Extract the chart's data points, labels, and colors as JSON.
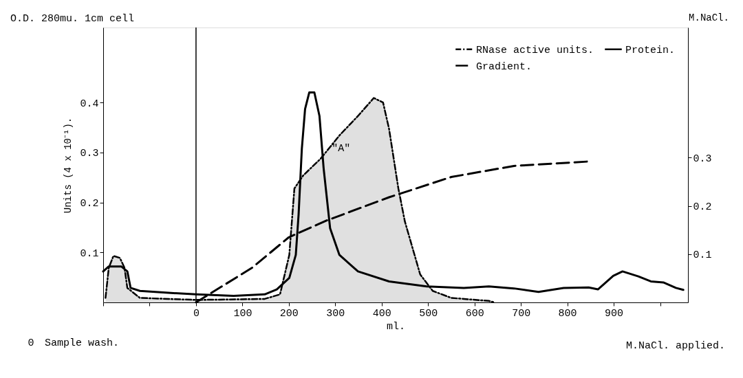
{
  "chart_data": {
    "type": "line",
    "xlabel": "ml.",
    "ylabel": "Units (4 x 10⁻¹).",
    "y2label": "M.NaCl.",
    "annotations": [
      "O.D. 280mu. 1cm cell",
      "Sample wash.",
      "M.NaCl. applied.",
      "\"A\"",
      "0"
    ],
    "xlim": [
      -200,
      1060
    ],
    "ylim": [
      0,
      0.55
    ],
    "y2lim": [
      0,
      0.57
    ],
    "xticks": [
      {
        "value": -200,
        "label": null
      },
      {
        "value": -100,
        "label": null
      },
      0,
      100,
      200,
      300,
      400,
      500,
      600,
      700,
      800,
      900,
      {
        "value": 1000,
        "label": null
      }
    ],
    "yticks": [
      0.1,
      0.2,
      0.3,
      0.4
    ],
    "y2ticks": [
      0.1,
      0.2,
      0.3
    ],
    "grid": false,
    "legend": "top right",
    "marker": "none",
    "ref_lines": [
      {
        "axis": "x",
        "value": 0,
        "label": null,
        "color": "#000000",
        "line_style": "solid"
      }
    ],
    "series": [
      {
        "name": "RNase active units.",
        "type": "area",
        "color": "#000000",
        "line_style": "dotted",
        "x": [
          -195,
          -188,
          -178,
          -164,
          -154,
          -148,
          -121,
          0,
          148,
          181,
          201,
          212,
          231,
          268,
          309,
          349,
          383,
          403,
          416,
          436,
          450,
          483,
          510,
          550,
          631,
          644
        ],
        "values": [
          0.009,
          0.069,
          0.093,
          0.089,
          0.069,
          0.029,
          0.009,
          0.005,
          0.007,
          0.016,
          0.095,
          0.228,
          0.254,
          0.287,
          0.334,
          0.373,
          0.409,
          0.4,
          0.347,
          0.228,
          0.162,
          0.056,
          0.023,
          0.009,
          0.003,
          0
        ]
      },
      {
        "name": "Protein.",
        "color": "#000000",
        "line_style": "solid",
        "x": [
          -200,
          -188,
          -161,
          -148,
          -141,
          -121,
          -54,
          0,
          81,
          148,
          174,
          201,
          215,
          221,
          228,
          235,
          244,
          255,
          266,
          275,
          289,
          309,
          349,
          416,
          497,
          577,
          631,
          685,
          738,
          792,
          846,
          866,
          899,
          919,
          953,
          980,
          1007,
          1034,
          1050
        ],
        "values": [
          0.062,
          0.072,
          0.072,
          0.062,
          0.029,
          0.023,
          0.019,
          0.016,
          0.013,
          0.016,
          0.026,
          0.049,
          0.095,
          0.175,
          0.307,
          0.387,
          0.42,
          0.42,
          0.373,
          0.268,
          0.148,
          0.095,
          0.062,
          0.042,
          0.032,
          0.029,
          0.032,
          0.028,
          0.021,
          0.029,
          0.03,
          0.026,
          0.053,
          0.062,
          0.052,
          0.042,
          0.04,
          0.029,
          0.025
        ]
      },
      {
        "name": "Gradient.",
        "axis": "y2",
        "color": "#000000",
        "line_style": "dashed",
        "x": [
          0,
          121,
          200,
          282,
          416,
          550,
          685,
          843
        ],
        "values": [
          0,
          0.072,
          0.135,
          0.17,
          0.218,
          0.26,
          0.283,
          0.292
        ]
      }
    ]
  }
}
